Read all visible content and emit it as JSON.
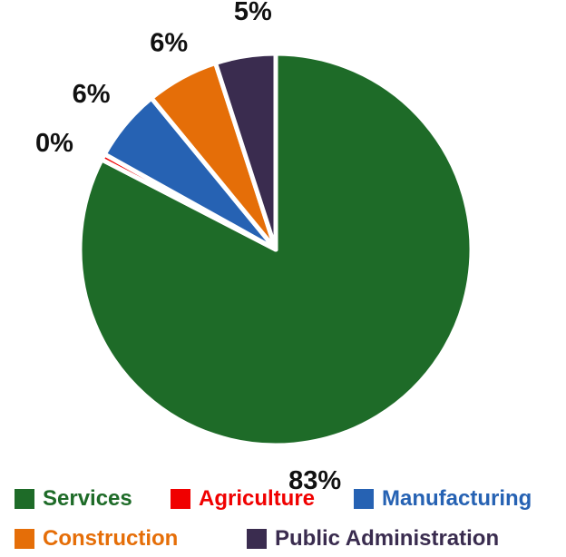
{
  "chart_data": {
    "type": "pie",
    "categories": [
      "Services",
      "Agriculture",
      "Manufacturing",
      "Construction",
      "Public Administration"
    ],
    "values": [
      83,
      0.5,
      6,
      6,
      5
    ],
    "data_labels": [
      "83%",
      "0%",
      "6%",
      "6%",
      "5%"
    ],
    "colors": [
      "#1e6b28",
      "#f00000",
      "#2662b3",
      "#e56e08",
      "#3a2c4f"
    ],
    "start_angle": "12 o'clock",
    "direction": "clockwise",
    "legend_position": "bottom"
  }
}
